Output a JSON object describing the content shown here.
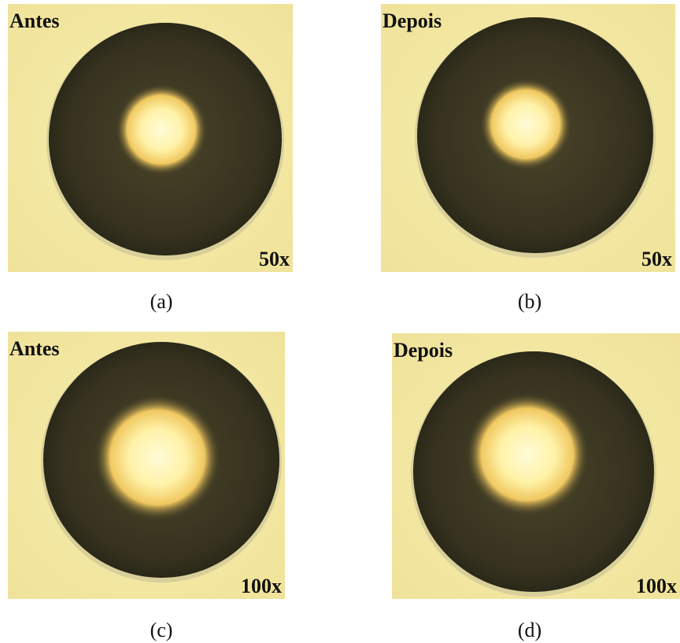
{
  "panels": [
    {
      "label": "Antes",
      "magnification": "50x",
      "caption": "(a)"
    },
    {
      "label": "Depois",
      "magnification": "50x",
      "caption": "(b)"
    },
    {
      "label": "Antes",
      "magnification": "100x",
      "caption": "(c)"
    },
    {
      "label": "Depois",
      "magnification": "100x",
      "caption": "(d)"
    }
  ]
}
